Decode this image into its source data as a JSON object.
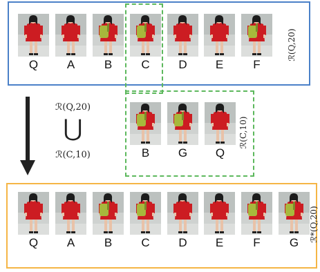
{
  "colors": {
    "top_box": "#4a80c8",
    "green_dashed": "#5cb85c",
    "bottom_box": "#f5b545",
    "arrow": "#222222",
    "shirt_red": "#cc1c22",
    "bag_green": "#a7b83c",
    "background_gray": "#cfd2d0"
  },
  "top_row": {
    "items": [
      {
        "label": "Q",
        "bag": false
      },
      {
        "label": "A",
        "bag": false
      },
      {
        "label": "B",
        "bag": true
      },
      {
        "label": "C",
        "bag": true
      },
      {
        "label": "D",
        "bag": false
      },
      {
        "label": "E",
        "bag": false
      },
      {
        "label": "F",
        "bag": true
      }
    ],
    "side_label": "ℛ(Q,20)"
  },
  "middle_row": {
    "items": [
      {
        "label": "B",
        "bag": true
      },
      {
        "label": "G",
        "bag": true
      },
      {
        "label": "Q",
        "bag": false
      }
    ],
    "side_label": "ℛ(C,10)"
  },
  "union": {
    "top": "ℛ(Q,20)",
    "symbol": "⋃",
    "bottom": "ℛ(C,10)"
  },
  "bottom_row": {
    "items": [
      {
        "label": "Q",
        "bag": false
      },
      {
        "label": "A",
        "bag": false
      },
      {
        "label": "B",
        "bag": true
      },
      {
        "label": "C",
        "bag": true
      },
      {
        "label": "D",
        "bag": false
      },
      {
        "label": "E",
        "bag": false
      },
      {
        "label": "F",
        "bag": true
      },
      {
        "label": "G",
        "bag": true
      }
    ],
    "side_label": "ℛ*(Q,20)"
  }
}
